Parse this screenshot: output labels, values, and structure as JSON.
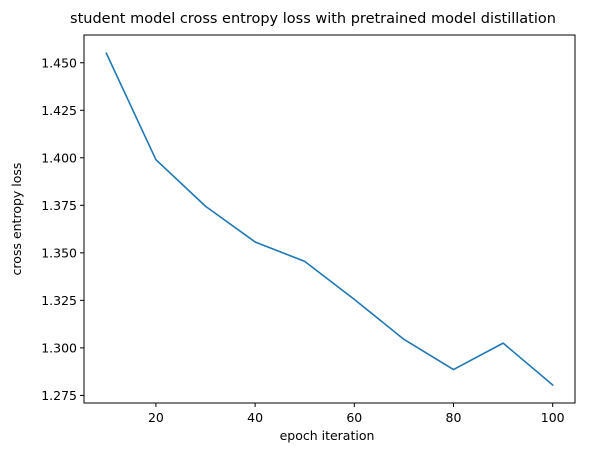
{
  "chart_data": {
    "type": "line",
    "title": "student model cross entropy loss with pretrained model distillation",
    "xlabel": "epoch iteration",
    "ylabel": "cross entropy loss",
    "xlim": [
      5.5,
      104.5
    ],
    "ylim": [
      1.271,
      1.4646
    ],
    "xticks": [
      20,
      40,
      60,
      80,
      100
    ],
    "yticks": [
      1.275,
      1.3,
      1.325,
      1.35,
      1.375,
      1.4,
      1.425,
      1.45
    ],
    "xtick_labels": [
      "20",
      "40",
      "60",
      "80",
      "100"
    ],
    "ytick_labels": [
      "1.275",
      "1.300",
      "1.325",
      "1.350",
      "1.375",
      "1.400",
      "1.425",
      "1.450"
    ],
    "grid": false,
    "series": [
      {
        "color": "#1f77b4",
        "x": [
          10,
          20,
          30,
          40,
          50,
          60,
          70,
          80,
          90,
          100
        ],
        "y": [
          1.455,
          1.399,
          1.3745,
          1.3557,
          1.3455,
          1.3255,
          1.3045,
          1.2886,
          1.3025,
          1.2805
        ]
      }
    ]
  }
}
